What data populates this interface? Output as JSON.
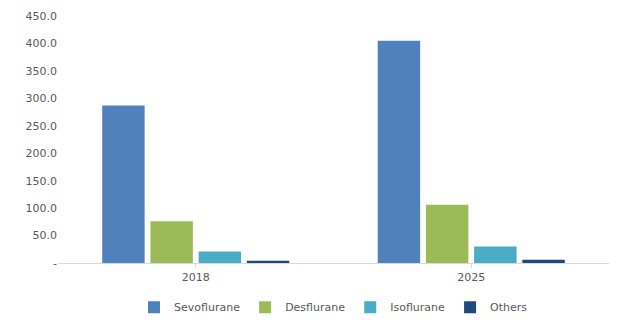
{
  "chart_data": {
    "type": "bar",
    "categories": [
      "2018",
      "2025"
    ],
    "series": [
      {
        "name": "Sevoflurane",
        "color": "#4f81bd",
        "values": [
          287,
          405
        ]
      },
      {
        "name": "Desflurane",
        "color": "#9bbb59",
        "values": [
          76,
          106
        ]
      },
      {
        "name": "Isoflurane",
        "color": "#4bacc6",
        "values": [
          21,
          30
        ]
      },
      {
        "name": "Others",
        "color": "#1f497d",
        "values": [
          4,
          6
        ]
      }
    ],
    "ylim": [
      0,
      450
    ],
    "yticks": [
      {
        "value": 0,
        "label": "-"
      },
      {
        "value": 50,
        "label": "50.0"
      },
      {
        "value": 100,
        "label": "100.0"
      },
      {
        "value": 150,
        "label": "150.0"
      },
      {
        "value": 200,
        "label": "200.0"
      },
      {
        "value": 250,
        "label": "250.0"
      },
      {
        "value": 300,
        "label": "300.0"
      },
      {
        "value": 350,
        "label": "350.0"
      },
      {
        "value": 400,
        "label": "400.0"
      },
      {
        "value": 450,
        "label": "450.0"
      }
    ],
    "grid": false,
    "legend": "bottom"
  }
}
